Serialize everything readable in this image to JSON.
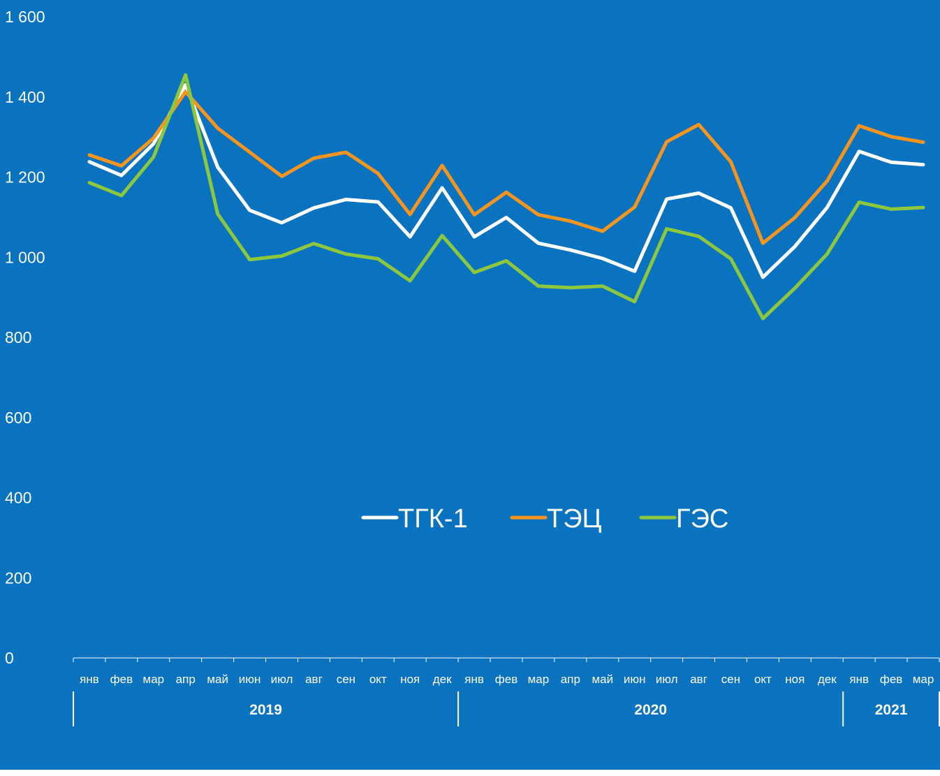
{
  "chart_data": {
    "type": "line",
    "categories": [
      "янв",
      "фев",
      "мар",
      "апр",
      "май",
      "июн",
      "июл",
      "авг",
      "сен",
      "окт",
      "ноя",
      "дек",
      "янв",
      "фев",
      "мар",
      "апр",
      "май",
      "июн",
      "июл",
      "авг",
      "сен",
      "окт",
      "ноя",
      "дек",
      "янв",
      "фев",
      "мар"
    ],
    "years": [
      {
        "label": "2019",
        "start": 0,
        "end": 12
      },
      {
        "label": "2020",
        "start": 12,
        "end": 24
      },
      {
        "label": "2021",
        "start": 24,
        "end": 27
      }
    ],
    "yticks": [
      {
        "value": 0,
        "label": "0"
      },
      {
        "value": 200,
        "label": "200"
      },
      {
        "value": 400,
        "label": "400"
      },
      {
        "value": 600,
        "label": "600"
      },
      {
        "value": 800,
        "label": "800"
      },
      {
        "value": 1000,
        "label": "1 000"
      },
      {
        "value": 1200,
        "label": "1 200"
      },
      {
        "value": 1400,
        "label": "1 400"
      },
      {
        "value": 1600,
        "label": "1 600"
      }
    ],
    "ylim": [
      0,
      1600
    ],
    "grid": false,
    "legend_position": "center",
    "series": [
      {
        "name": "ТГК-1",
        "color": "#ffffff",
        "values": [
          1238,
          1204,
          1283,
          1430,
          1225,
          1117,
          1086,
          1123,
          1144,
          1138,
          1051,
          1173,
          1051,
          1099,
          1035,
          1018,
          997,
          965,
          1145,
          1160,
          1123,
          950,
          1027,
          1124,
          1264,
          1237,
          1231
        ]
      },
      {
        "name": "ТЭЦ",
        "color": "#f7941d",
        "values": [
          1255,
          1228,
          1297,
          1413,
          1322,
          1262,
          1202,
          1247,
          1262,
          1209,
          1107,
          1229,
          1106,
          1162,
          1106,
          1090,
          1065,
          1125,
          1288,
          1331,
          1238,
          1035,
          1099,
          1190,
          1328,
          1301,
          1287
        ]
      },
      {
        "name": "ГЭС",
        "color": "#8dc63f",
        "values": [
          1186,
          1154,
          1250,
          1455,
          1108,
          994,
          1003,
          1034,
          1008,
          996,
          941,
          1054,
          962,
          991,
          928,
          924,
          928,
          889,
          1071,
          1052,
          996,
          847,
          923,
          1008,
          1137,
          1120,
          1124
        ]
      }
    ]
  }
}
